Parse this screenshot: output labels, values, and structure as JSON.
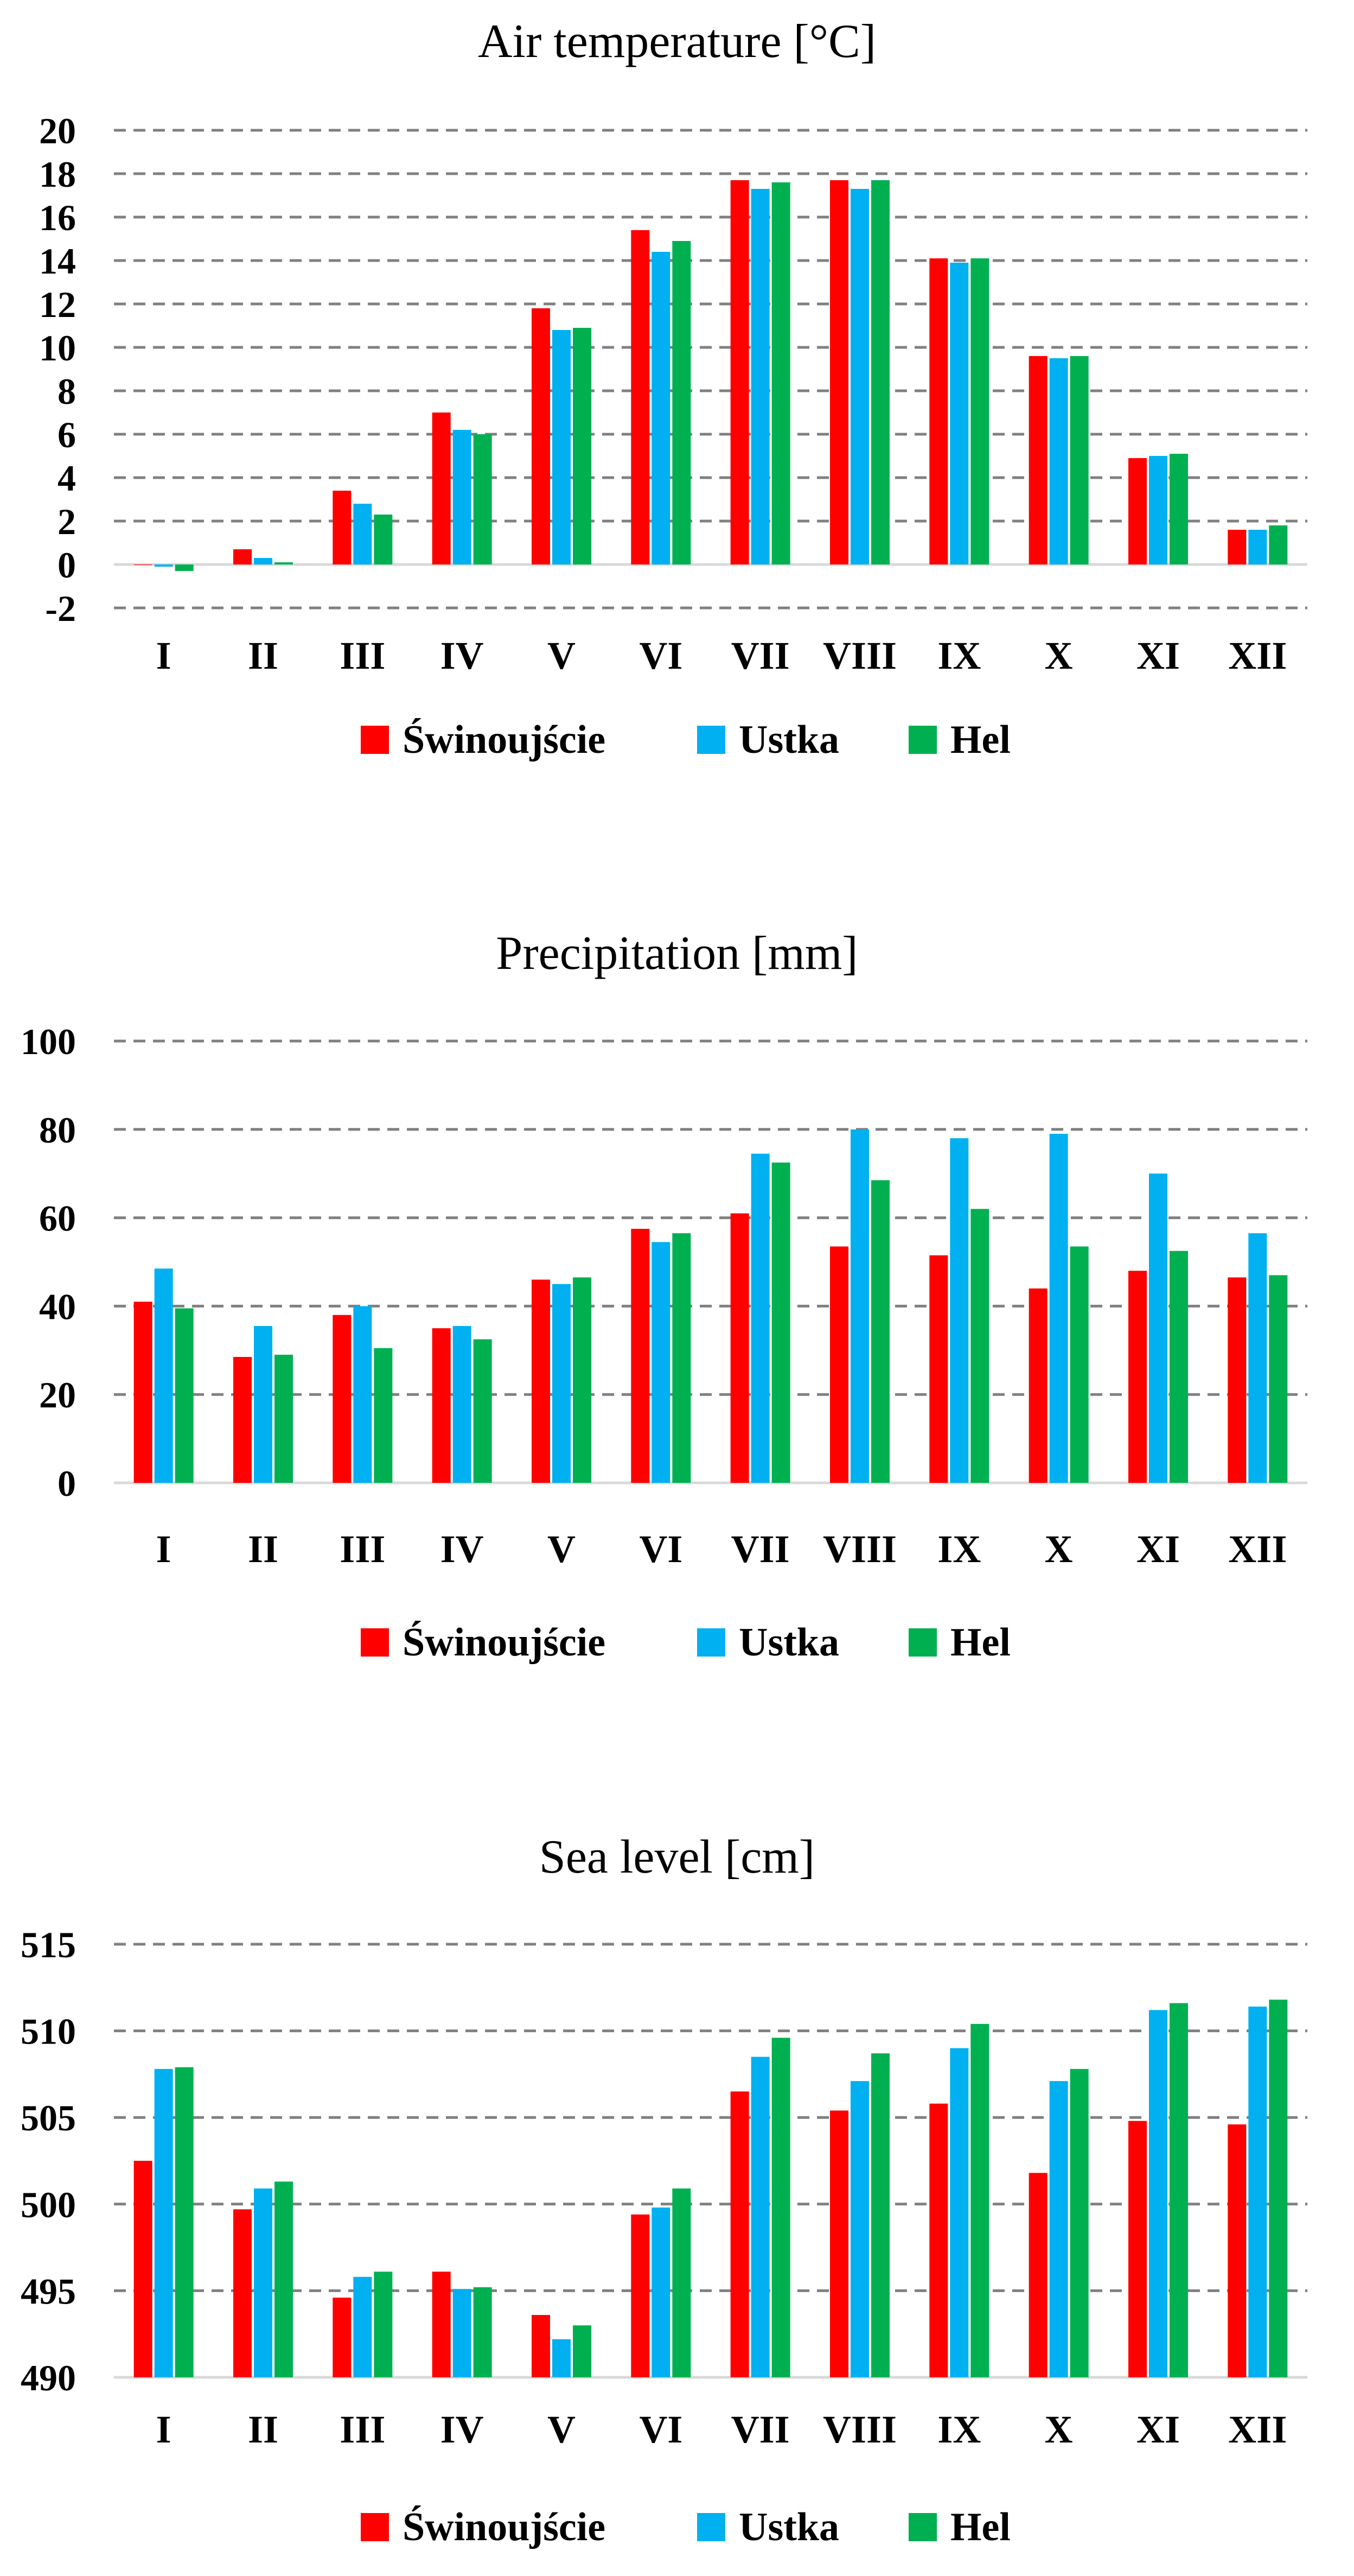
{
  "colors": {
    "Świnoujście": "#FF0000",
    "Ustka": "#00B0F0",
    "Hel": "#00B050",
    "grid": "#808080",
    "axis": "#D9D9D9"
  },
  "chart_data": [
    {
      "type": "bar",
      "title": "Air temperature [°C]",
      "categories": [
        "I",
        "II",
        "III",
        "IV",
        "V",
        "VI",
        "VII",
        "VIII",
        "IX",
        "X",
        "XI",
        "XII"
      ],
      "yticks": [
        "-2",
        "0",
        "2",
        "4",
        "6",
        "8",
        "10",
        "12",
        "14",
        "16",
        "18",
        "20"
      ],
      "ylim": [
        -2,
        20
      ],
      "series": [
        {
          "name": "Świnoujście",
          "values": [
            0.0,
            0.7,
            3.4,
            7.0,
            11.8,
            15.4,
            17.7,
            17.7,
            14.1,
            9.6,
            4.9,
            1.6
          ]
        },
        {
          "name": "Ustka",
          "values": [
            -0.1,
            0.3,
            2.8,
            6.2,
            10.8,
            14.4,
            17.3,
            17.3,
            13.9,
            9.5,
            5.0,
            1.6
          ]
        },
        {
          "name": "Hel",
          "values": [
            -0.3,
            0.1,
            2.3,
            6.0,
            10.9,
            14.9,
            17.6,
            17.7,
            14.1,
            9.6,
            5.1,
            1.8
          ]
        }
      ]
    },
    {
      "type": "bar",
      "title": "Precipitation [mm]",
      "categories": [
        "I",
        "II",
        "III",
        "IV",
        "V",
        "VI",
        "VII",
        "VIII",
        "IX",
        "X",
        "XI",
        "XII"
      ],
      "yticks": [
        "0",
        "20",
        "40",
        "60",
        "80",
        "100"
      ],
      "ylim": [
        0,
        100
      ],
      "series": [
        {
          "name": "Świnoujście",
          "values": [
            41,
            28.5,
            38,
            35,
            46,
            57.5,
            61,
            53.5,
            51.5,
            44,
            48,
            46.5
          ]
        },
        {
          "name": "Ustka",
          "values": [
            48.5,
            35.5,
            40,
            35.5,
            45,
            54.5,
            74.5,
            80,
            78,
            79,
            70,
            56.5
          ]
        },
        {
          "name": "Hel",
          "values": [
            39.5,
            29,
            30.5,
            32.5,
            46.5,
            56.5,
            72.5,
            68.5,
            62,
            53.5,
            52.5,
            47
          ]
        }
      ]
    },
    {
      "type": "bar",
      "title": "Sea level [cm]",
      "categories": [
        "I",
        "II",
        "III",
        "IV",
        "V",
        "VI",
        "VII",
        "VIII",
        "IX",
        "X",
        "XI",
        "XII"
      ],
      "yticks": [
        "490",
        "495",
        "500",
        "505",
        "510",
        "515"
      ],
      "ylim": [
        490,
        515
      ],
      "series": [
        {
          "name": "Świnoujście",
          "values": [
            502.5,
            499.7,
            494.6,
            496.1,
            493.6,
            499.4,
            506.5,
            505.4,
            505.8,
            501.8,
            504.8,
            504.6
          ]
        },
        {
          "name": "Ustka",
          "values": [
            507.8,
            500.9,
            495.8,
            495.1,
            492.2,
            499.8,
            508.5,
            507.1,
            509.0,
            507.1,
            511.2,
            511.4
          ]
        },
        {
          "name": "Hel",
          "values": [
            507.9,
            501.3,
            496.1,
            495.2,
            493.0,
            500.9,
            509.6,
            508.7,
            510.4,
            507.8,
            511.6,
            511.8
          ]
        }
      ]
    }
  ]
}
